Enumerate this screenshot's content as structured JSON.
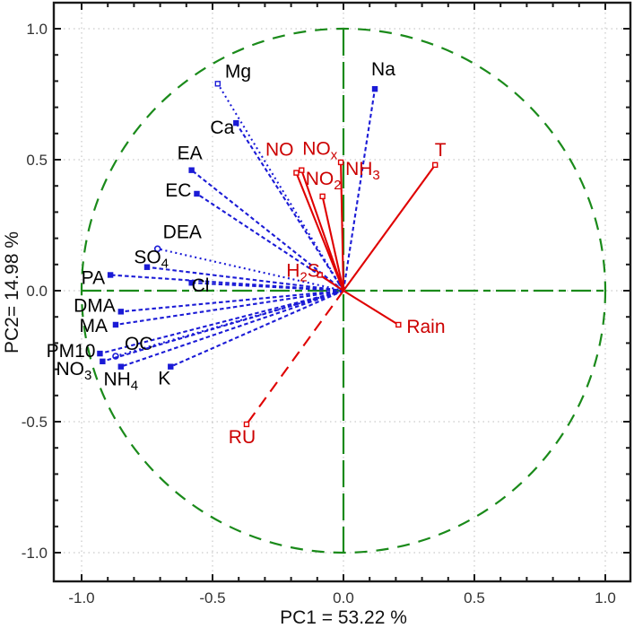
{
  "chart_data": {
    "type": "scatter",
    "subtype": "pca-correlation-circle-biplot",
    "title": "",
    "xlabel": "PC1 = 53.22 %",
    "ylabel": "PC2= 14.98 %",
    "xlim": [
      -1.1,
      1.1
    ],
    "ylim": [
      -1.1,
      1.1
    ],
    "major_ticks": [
      -1.0,
      -0.5,
      0.0,
      0.5,
      1.0
    ],
    "x_tick_labels": [
      "-1.0",
      "-0.5",
      "0.0",
      "0.5",
      "1.0"
    ],
    "y_tick_labels": [
      "-1.0",
      "-0.5",
      "0.0",
      "0.5",
      "1.0"
    ],
    "minor_tick_step": 0.1,
    "grid": "dotted-major",
    "unit_circle_radius": 1.0,
    "legend_position": "none",
    "colors": {
      "frame": "#1a1a1a",
      "grid": "#bdbdbd",
      "green_axes": "#1a8a1a",
      "circle": "#1a8a1a",
      "blue": "#1b1bd6",
      "red": "#df0000",
      "blue_label": "#000000",
      "red_label": "#cc0000"
    },
    "series": [
      {
        "name": "blue-series",
        "color": "#1b1bd6",
        "label_color": "#000000",
        "points": [
          {
            "id": "mg",
            "label": [
              {
                "t": "Mg"
              }
            ],
            "x": -0.48,
            "y": 0.79,
            "line": "dotted",
            "marker": "open-square",
            "anchor": "start",
            "ldx": 8,
            "ldy": -7
          },
          {
            "id": "ca",
            "label": [
              {
                "t": "Ca"
              }
            ],
            "x": -0.41,
            "y": 0.64,
            "line": "dashed",
            "marker": "square",
            "anchor": "end",
            "ldx": -2,
            "ldy": 12
          },
          {
            "id": "na",
            "label": [
              {
                "t": "Na"
              }
            ],
            "x": 0.12,
            "y": 0.77,
            "line": "dashed",
            "marker": "square",
            "anchor": "start",
            "ldx": -4,
            "ldy": -15
          },
          {
            "id": "ea",
            "label": [
              {
                "t": "EA"
              }
            ],
            "x": -0.58,
            "y": 0.46,
            "line": "dashed",
            "marker": "square",
            "anchor": "middle",
            "ldx": -2,
            "ldy": -12
          },
          {
            "id": "ec",
            "label": [
              {
                "t": "EC"
              }
            ],
            "x": -0.56,
            "y": 0.37,
            "line": "dashed",
            "marker": "square",
            "anchor": "end",
            "ldx": -6,
            "ldy": 3
          },
          {
            "id": "dea",
            "label": [
              {
                "t": "DEA"
              }
            ],
            "x": -0.71,
            "y": 0.16,
            "line": "dotted",
            "marker": "open-circle",
            "anchor": "start",
            "ldx": 6,
            "ldy": -12
          },
          {
            "id": "so4",
            "label": [
              {
                "t": "SO"
              },
              {
                "t": "4",
                "sub": true
              }
            ],
            "x": -0.75,
            "y": 0.09,
            "line": "dashed",
            "marker": "square",
            "anchor": "end",
            "ldx": 24,
            "ldy": -4
          },
          {
            "id": "pa",
            "label": [
              {
                "t": "PA"
              }
            ],
            "x": -0.89,
            "y": 0.06,
            "line": "dashed",
            "marker": "square",
            "anchor": "end",
            "ldx": -6,
            "ldy": 10
          },
          {
            "id": "cl",
            "label": [
              {
                "t": "Cl"
              }
            ],
            "x": -0.58,
            "y": 0.03,
            "line": "dashed",
            "marker": "square",
            "anchor": "start",
            "ldx": 0,
            "ldy": 10
          },
          {
            "id": "dma",
            "label": [
              {
                "t": "DMA"
              }
            ],
            "x": -0.85,
            "y": -0.08,
            "line": "dashed",
            "marker": "square",
            "anchor": "end",
            "ldx": -6,
            "ldy": 0
          },
          {
            "id": "ma",
            "label": [
              {
                "t": "MA"
              }
            ],
            "x": -0.87,
            "y": -0.13,
            "line": "dashed",
            "marker": "square",
            "anchor": "end",
            "ldx": -9,
            "ldy": 8
          },
          {
            "id": "pm10",
            "label": [
              {
                "t": "PM10"
              }
            ],
            "x": -0.93,
            "y": -0.24,
            "line": "dashed",
            "marker": "square",
            "anchor": "end",
            "ldx": -5,
            "ldy": 4
          },
          {
            "id": "oc",
            "label": [
              {
                "t": "OC"
              }
            ],
            "x": -0.87,
            "y": -0.25,
            "line": "dotted",
            "marker": "open-circle",
            "anchor": "start",
            "ldx": 10,
            "ldy": -7
          },
          {
            "id": "no3",
            "label": [
              {
                "t": "NO"
              },
              {
                "t": "3",
                "sub": true
              }
            ],
            "x": -0.92,
            "y": -0.27,
            "line": "dashed",
            "marker": "square",
            "anchor": "end",
            "ldx": -12,
            "ldy": 15
          },
          {
            "id": "nh4",
            "label": [
              {
                "t": "NH"
              },
              {
                "t": "4",
                "sub": true
              }
            ],
            "x": -0.85,
            "y": -0.29,
            "line": "dashed",
            "marker": "square",
            "anchor": "middle",
            "ldx": 0,
            "ldy": 21
          },
          {
            "id": "k",
            "label": [
              {
                "t": "K"
              }
            ],
            "x": -0.66,
            "y": -0.29,
            "line": "dashed",
            "marker": "square",
            "anchor": "middle",
            "ldx": -7,
            "ldy": 20
          }
        ]
      },
      {
        "name": "red-series",
        "color": "#df0000",
        "label_color": "#cc0000",
        "points": [
          {
            "id": "no",
            "label": [
              {
                "t": "NO"
              }
            ],
            "x": -0.18,
            "y": 0.45,
            "line": "solid",
            "marker": "open-square",
            "anchor": "end",
            "ldx": -3,
            "ldy": -19
          },
          {
            "id": "nox",
            "label": [
              {
                "t": "NO"
              },
              {
                "t": "x",
                "sub": true
              }
            ],
            "x": -0.16,
            "y": 0.46,
            "line": "solid",
            "marker": "open-square",
            "anchor": "start",
            "ldx": 1,
            "ldy": -17
          },
          {
            "id": "no2",
            "label": [
              {
                "t": "NO"
              },
              {
                "t": "2",
                "sub": true
              }
            ],
            "x": -0.08,
            "y": 0.36,
            "line": "solid",
            "marker": "open-square",
            "anchor": "middle",
            "ldx": 1,
            "ldy": -13
          },
          {
            "id": "nh3",
            "label": [
              {
                "t": "NH"
              },
              {
                "t": "3",
                "sub": true
              }
            ],
            "x": -0.01,
            "y": 0.49,
            "line": "solid",
            "marker": "open-square",
            "anchor": "start",
            "ldx": 5,
            "ldy": 14
          },
          {
            "id": "t",
            "label": [
              {
                "t": "T"
              }
            ],
            "x": 0.35,
            "y": 0.48,
            "line": "solid",
            "marker": "open-square",
            "anchor": "middle",
            "ldx": 6,
            "ldy": -10
          },
          {
            "id": "h2s",
            "label": [
              {
                "t": "H"
              },
              {
                "t": "2",
                "sub": true
              },
              {
                "t": "S"
              }
            ],
            "x": -0.09,
            "y": 0.06,
            "line": "solid",
            "marker": "open-square",
            "anchor": "end",
            "ldx": 0,
            "ldy": 2
          },
          {
            "id": "rain",
            "label": [
              {
                "t": "Rain"
              }
            ],
            "x": 0.21,
            "y": -0.13,
            "line": "solid",
            "marker": "open-square",
            "anchor": "start",
            "ldx": 9,
            "ldy": 9
          },
          {
            "id": "ru",
            "label": [
              {
                "t": "RU"
              }
            ],
            "x": -0.37,
            "y": -0.51,
            "line": "dashed-long",
            "marker": "open-square",
            "anchor": "middle",
            "ldx": -5,
            "ldy": 21
          }
        ]
      }
    ]
  }
}
